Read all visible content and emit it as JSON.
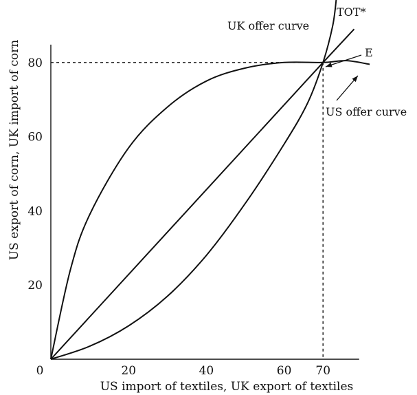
{
  "chart_data": {
    "type": "line",
    "xlabel": "US import of textiles, UK export of textiles",
    "ylabel": "US export of corn, UK import of corn",
    "xlim": [
      0,
      80
    ],
    "ylim": [
      0,
      85
    ],
    "x_ticks": [
      {
        "value": 0,
        "label": "0"
      },
      {
        "value": 20,
        "label": "20"
      },
      {
        "value": 40,
        "label": "40"
      },
      {
        "value": 60,
        "label": "60"
      },
      {
        "value": 70,
        "label": "70"
      }
    ],
    "y_ticks": [
      {
        "value": 20,
        "label": "20"
      },
      {
        "value": 40,
        "label": "40"
      },
      {
        "value": 60,
        "label": "60"
      },
      {
        "value": 80,
        "label": "80"
      }
    ],
    "grid": false,
    "equilibrium": {
      "label": "E",
      "x": 70,
      "y": 80
    },
    "series": [
      {
        "name": "US offer curve",
        "points": [
          [
            0,
            0
          ],
          [
            5,
            24
          ],
          [
            10,
            39
          ],
          [
            20,
            57
          ],
          [
            30,
            68
          ],
          [
            40,
            75
          ],
          [
            50,
            78.5
          ],
          [
            60,
            80
          ],
          [
            70,
            80
          ],
          [
            76,
            80.5
          ],
          [
            82,
            79.5
          ]
        ]
      },
      {
        "name": "UK offer curve",
        "points": [
          [
            0,
            0
          ],
          [
            10,
            3.5
          ],
          [
            20,
            9
          ],
          [
            30,
            17
          ],
          [
            40,
            28
          ],
          [
            50,
            42
          ],
          [
            60,
            58
          ],
          [
            66,
            69
          ],
          [
            70,
            80
          ],
          [
            72.5,
            90
          ],
          [
            73.5,
            98
          ]
        ]
      },
      {
        "name": "TOT*",
        "points": [
          [
            0,
            0
          ],
          [
            70,
            80
          ],
          [
            78,
            89
          ]
        ]
      }
    ]
  }
}
